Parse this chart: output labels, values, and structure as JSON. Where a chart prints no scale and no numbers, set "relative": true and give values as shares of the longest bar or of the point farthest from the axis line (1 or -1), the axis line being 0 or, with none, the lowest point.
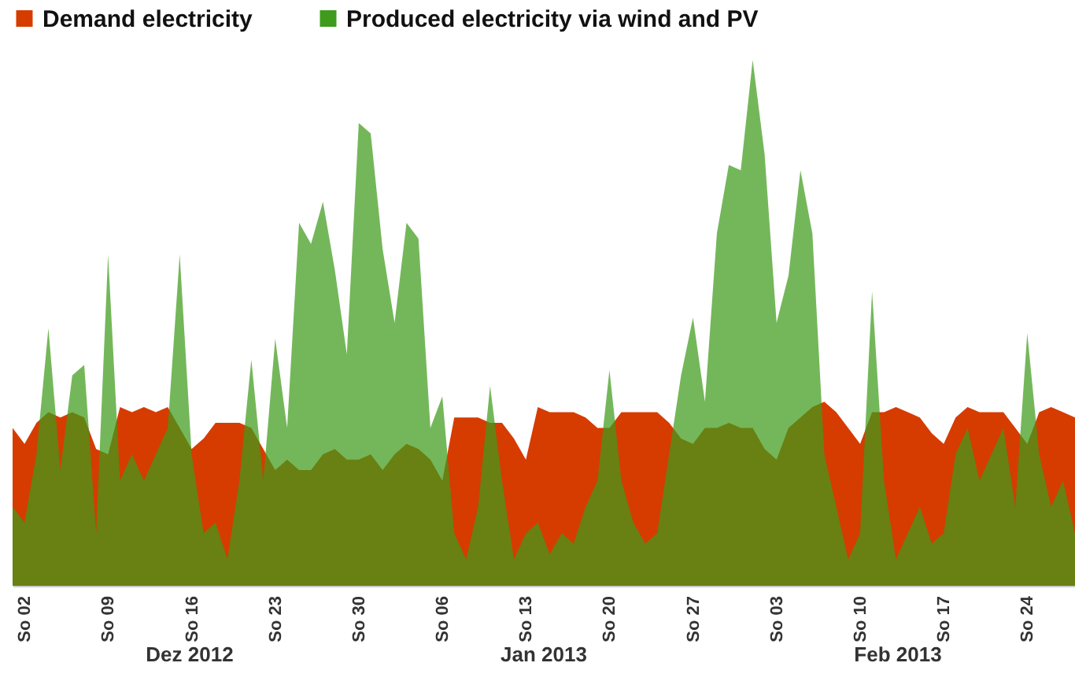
{
  "chart_data": {
    "type": "area",
    "relative": true,
    "legend": "top",
    "x": [
      "2012-12-01",
      "2012-12-02",
      "2012-12-03",
      "2012-12-04",
      "2012-12-05",
      "2012-12-06",
      "2012-12-07",
      "2012-12-08",
      "2012-12-09",
      "2012-12-10",
      "2012-12-11",
      "2012-12-12",
      "2012-12-13",
      "2012-12-14",
      "2012-12-15",
      "2012-12-16",
      "2012-12-17",
      "2012-12-18",
      "2012-12-19",
      "2012-12-20",
      "2012-12-21",
      "2012-12-22",
      "2012-12-23",
      "2012-12-24",
      "2012-12-25",
      "2012-12-26",
      "2012-12-27",
      "2012-12-28",
      "2012-12-29",
      "2012-12-30",
      "2012-12-31",
      "2013-01-01",
      "2013-01-02",
      "2013-01-03",
      "2013-01-04",
      "2013-01-05",
      "2013-01-06",
      "2013-01-07",
      "2013-01-08",
      "2013-01-09",
      "2013-01-10",
      "2013-01-11",
      "2013-01-12",
      "2013-01-13",
      "2013-01-14",
      "2013-01-15",
      "2013-01-16",
      "2013-01-17",
      "2013-01-18",
      "2013-01-19",
      "2013-01-20",
      "2013-01-21",
      "2013-01-22",
      "2013-01-23",
      "2013-01-24",
      "2013-01-25",
      "2013-01-26",
      "2013-01-27",
      "2013-01-28",
      "2013-01-29",
      "2013-01-30",
      "2013-01-31",
      "2013-02-01",
      "2013-02-02",
      "2013-02-03",
      "2013-02-04",
      "2013-02-05",
      "2013-02-06",
      "2013-02-07",
      "2013-02-08",
      "2013-02-09",
      "2013-02-10",
      "2013-02-11",
      "2013-02-12",
      "2013-02-13",
      "2013-02-14",
      "2013-02-15",
      "2013-02-16",
      "2013-02-17",
      "2013-02-18",
      "2013-02-19",
      "2013-02-20",
      "2013-02-21",
      "2013-02-22",
      "2013-02-23",
      "2013-02-24",
      "2013-02-25",
      "2013-02-26",
      "2013-02-27",
      "2013-02-28"
    ],
    "xlim": [
      "2012-12-01",
      "2013-02-28"
    ],
    "xticks": [
      {
        "value": "2012-12-02",
        "label": "So 02"
      },
      {
        "value": "2012-12-09",
        "label": "So 09"
      },
      {
        "value": "2012-12-16",
        "label": "So 16"
      },
      {
        "value": "2012-12-23",
        "label": "So 23"
      },
      {
        "value": "2012-12-30",
        "label": "So 30"
      },
      {
        "value": "2013-01-06",
        "label": "So 06"
      },
      {
        "value": "2013-01-13",
        "label": "So 13"
      },
      {
        "value": "2013-01-20",
        "label": "So 20"
      },
      {
        "value": "2013-01-27",
        "label": "So 27"
      },
      {
        "value": "2013-02-03",
        "label": "So 03"
      },
      {
        "value": "2013-02-10",
        "label": "So 10"
      },
      {
        "value": "2013-02-17",
        "label": "So 17"
      },
      {
        "value": "2013-02-24",
        "label": "So 24"
      }
    ],
    "annotations": [
      "Dez 2012",
      "Jan 2013",
      "Feb 2013"
    ],
    "series": [
      {
        "name": "Demand electricity",
        "color": "#d63c00",
        "values": [
          0.3,
          0.27,
          0.31,
          0.33,
          0.32,
          0.33,
          0.32,
          0.26,
          0.25,
          0.34,
          0.33,
          0.34,
          0.33,
          0.34,
          0.3,
          0.26,
          0.28,
          0.31,
          0.31,
          0.31,
          0.3,
          0.26,
          0.22,
          0.24,
          0.22,
          0.22,
          0.25,
          0.26,
          0.24,
          0.24,
          0.25,
          0.22,
          0.25,
          0.27,
          0.26,
          0.24,
          0.2,
          0.32,
          0.32,
          0.32,
          0.31,
          0.31,
          0.28,
          0.24,
          0.34,
          0.33,
          0.33,
          0.33,
          0.32,
          0.3,
          0.3,
          0.33,
          0.33,
          0.33,
          0.33,
          0.31,
          0.28,
          0.27,
          0.3,
          0.3,
          0.31,
          0.3,
          0.3,
          0.26,
          0.24,
          0.3,
          0.32,
          0.34,
          0.35,
          0.33,
          0.3,
          0.27,
          0.33,
          0.33,
          0.34,
          0.33,
          0.32,
          0.29,
          0.27,
          0.32,
          0.34,
          0.33,
          0.33,
          0.33,
          0.3,
          0.27,
          0.33,
          0.34,
          0.33,
          0.32
        ]
      },
      {
        "name": "Produced electricity via wind and PV",
        "color": "#3e9b1b",
        "values": [
          0.15,
          0.12,
          0.25,
          0.49,
          0.22,
          0.4,
          0.42,
          0.1,
          0.63,
          0.2,
          0.25,
          0.2,
          0.25,
          0.3,
          0.63,
          0.25,
          0.1,
          0.12,
          0.05,
          0.2,
          0.43,
          0.2,
          0.47,
          0.3,
          0.69,
          0.65,
          0.73,
          0.6,
          0.44,
          0.88,
          0.86,
          0.64,
          0.5,
          0.69,
          0.66,
          0.3,
          0.36,
          0.1,
          0.05,
          0.15,
          0.38,
          0.2,
          0.05,
          0.1,
          0.12,
          0.06,
          0.1,
          0.08,
          0.15,
          0.2,
          0.41,
          0.2,
          0.12,
          0.08,
          0.1,
          0.25,
          0.4,
          0.51,
          0.35,
          0.67,
          0.8,
          0.79,
          1.0,
          0.82,
          0.5,
          0.59,
          0.79,
          0.67,
          0.25,
          0.15,
          0.05,
          0.1,
          0.56,
          0.2,
          0.05,
          0.1,
          0.15,
          0.08,
          0.1,
          0.25,
          0.3,
          0.2,
          0.25,
          0.3,
          0.15,
          0.48,
          0.25,
          0.15,
          0.2,
          0.1
        ]
      }
    ]
  }
}
